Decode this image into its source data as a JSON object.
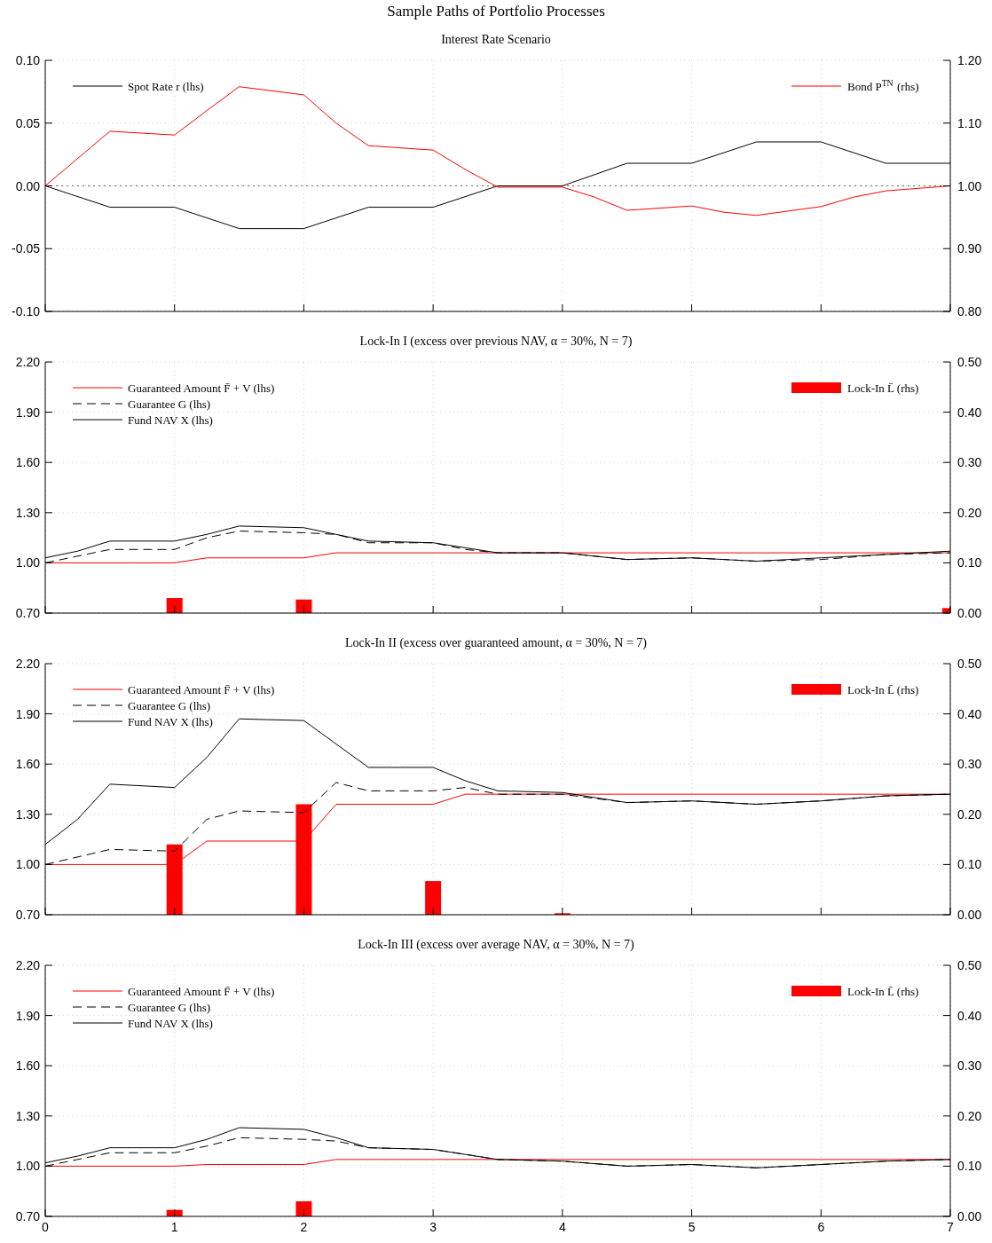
{
  "chart_data": [
    {
      "type": "line",
      "title": "Sample Paths of Portfolio Processes",
      "subtitle": "Interest Rate Scenario",
      "xlim": [
        0,
        7
      ],
      "xticks": [
        0,
        1,
        2,
        3,
        4,
        5,
        6,
        7
      ],
      "tick_labels": "y",
      "grid": true,
      "legend": "top",
      "ylim": [
        -0.1,
        0.1
      ],
      "yticks": [
        {
          "value": -0.1,
          "label": "-0.10"
        },
        {
          "value": -0.05,
          "label": "-0.05"
        },
        {
          "value": 0,
          "label": "0.00"
        },
        {
          "value": 0.05,
          "label": "0.05"
        },
        {
          "value": 0.1,
          "label": "0.10"
        }
      ],
      "y2lim": [
        0.8,
        1.2
      ],
      "y2ticks": [
        {
          "value": 0.8,
          "label": "0.80"
        },
        {
          "value": 0.9,
          "label": "0.90"
        },
        {
          "value": 1,
          "label": "1.00"
        },
        {
          "value": 1.1,
          "label": "1.10"
        },
        {
          "value": 1.2,
          "label": "1.20"
        }
      ],
      "ref_lines": [
        {
          "axis": "y",
          "value": 0,
          "color": "#666666",
          "line_style": "dotted"
        }
      ],
      "series": [
        {
          "name": "Spot Rate r (lhs)",
          "color": "#000000",
          "x": [
            0,
            0.5,
            1,
            1.5,
            2,
            2.5,
            3,
            3.5,
            4,
            4.5,
            5,
            5.5,
            6,
            6.5,
            7
          ],
          "values": [
            0,
            -0.017,
            -0.017,
            -0.034,
            -0.034,
            -0.017,
            -0.017,
            0,
            0,
            0.018,
            0.018,
            0.035,
            0.035,
            0.018,
            0.018
          ]
        },
        {
          "name": "Bond P$^{TN}$ (rhs)",
          "axis": "y2",
          "color": "#ff0000",
          "x": [
            0,
            0.5,
            1,
            1.25,
            1.5,
            2,
            2.25,
            2.5,
            3,
            3.25,
            3.5,
            4,
            4.25,
            4.5,
            5,
            5.25,
            5.5,
            6,
            6.25,
            6.5,
            7
          ],
          "values": [
            1.0,
            1.087,
            1.081,
            1.12,
            1.158,
            1.145,
            1.1,
            1.064,
            1.057,
            1.026,
            0.998,
            0.998,
            0.982,
            0.961,
            0.968,
            0.958,
            0.953,
            0.967,
            0.982,
            0.992,
            1.0
          ]
        }
      ]
    },
    {
      "type": "line",
      "subtitle": "Lock-In I (excess over previous NAV, α = 30%, N = 7)",
      "xlim": [
        0,
        7
      ],
      "xticks": [
        0,
        1,
        2,
        3,
        4,
        5,
        6,
        7
      ],
      "tick_labels": "y",
      "grid": true,
      "legend": "top",
      "ylim": [
        0.7,
        2.2
      ],
      "yticks": [
        {
          "value": 0.7,
          "label": "0.70"
        },
        {
          "value": 1,
          "label": "1.00"
        },
        {
          "value": 1.3,
          "label": "1.30"
        },
        {
          "value": 1.6,
          "label": "1.60"
        },
        {
          "value": 1.9,
          "label": "1.90"
        },
        {
          "value": 2.2,
          "label": "2.20"
        }
      ],
      "y2lim": [
        0,
        0.5
      ],
      "y2ticks": [
        {
          "value": 0,
          "label": "0.00"
        },
        {
          "value": 0.1,
          "label": "0.10"
        },
        {
          "value": 0.2,
          "label": "0.20"
        },
        {
          "value": 0.3,
          "label": "0.30"
        },
        {
          "value": 0.4,
          "label": "0.40"
        },
        {
          "value": 0.5,
          "label": "0.50"
        }
      ],
      "series": [
        {
          "name": "Guaranteed Amount F̄ + V (lhs)",
          "color": "#ff0000",
          "x": [
            0,
            1,
            1.25,
            2,
            2.25,
            7
          ],
          "values": [
            1.0,
            1.0,
            1.03,
            1.03,
            1.06,
            1.06
          ]
        },
        {
          "name": "Guarantee G (lhs)",
          "line_style": "dashed",
          "color": "#000000",
          "x": [
            0,
            0.5,
            1,
            1.25,
            1.5,
            2,
            2.25,
            2.5,
            3,
            3.25,
            3.5,
            4,
            4.25,
            4.5,
            5,
            5.5,
            6,
            6.5,
            7
          ],
          "values": [
            1.0,
            1.08,
            1.08,
            1.15,
            1.19,
            1.18,
            1.17,
            1.12,
            1.12,
            1.08,
            1.06,
            1.06,
            1.04,
            1.02,
            1.03,
            1.01,
            1.02,
            1.05,
            1.06
          ]
        },
        {
          "name": "Fund NAV X (lhs)",
          "color": "#000000",
          "x": [
            0,
            0.25,
            0.5,
            1,
            1.25,
            1.5,
            2,
            2.25,
            2.5,
            3,
            3.25,
            3.5,
            4,
            4.25,
            4.5,
            5,
            5.5,
            6,
            6.5,
            7
          ],
          "values": [
            1.03,
            1.07,
            1.13,
            1.13,
            1.17,
            1.22,
            1.21,
            1.17,
            1.13,
            1.12,
            1.09,
            1.06,
            1.06,
            1.04,
            1.02,
            1.03,
            1.01,
            1.03,
            1.05,
            1.07
          ]
        },
        {
          "name": "Lock-In L̄ (rhs)",
          "type": "bar",
          "axis": "y2",
          "color": "#ff0000",
          "x": [
            1,
            2,
            3,
            4,
            5,
            6,
            7
          ],
          "values": [
            0.03,
            0.027,
            0,
            0,
            0,
            0,
            0.01
          ]
        }
      ]
    },
    {
      "type": "line",
      "subtitle": "Lock-In II (excess over guaranteed amount, α = 30%, N = 7)",
      "xlim": [
        0,
        7
      ],
      "xticks": [
        0,
        1,
        2,
        3,
        4,
        5,
        6,
        7
      ],
      "tick_labels": "y",
      "grid": true,
      "legend": "top",
      "ylim": [
        0.7,
        2.2
      ],
      "yticks": [
        {
          "value": 0.7,
          "label": "0.70"
        },
        {
          "value": 1,
          "label": "1.00"
        },
        {
          "value": 1.3,
          "label": "1.30"
        },
        {
          "value": 1.6,
          "label": "1.60"
        },
        {
          "value": 1.9,
          "label": "1.90"
        },
        {
          "value": 2.2,
          "label": "2.20"
        }
      ],
      "y2lim": [
        0,
        0.5
      ],
      "y2ticks": [
        {
          "value": 0,
          "label": "0.00"
        },
        {
          "value": 0.1,
          "label": "0.10"
        },
        {
          "value": 0.2,
          "label": "0.20"
        },
        {
          "value": 0.3,
          "label": "0.30"
        },
        {
          "value": 0.4,
          "label": "0.40"
        },
        {
          "value": 0.5,
          "label": "0.50"
        }
      ],
      "series": [
        {
          "name": "Guaranteed Amount F̄ + V (lhs)",
          "color": "#ff0000",
          "x": [
            0,
            1,
            1.25,
            2,
            2.25,
            3,
            3.25,
            7
          ],
          "values": [
            1.0,
            1.0,
            1.14,
            1.14,
            1.36,
            1.36,
            1.42,
            1.42
          ]
        },
        {
          "name": "Guarantee G (lhs)",
          "line_style": "dashed",
          "color": "#000000",
          "x": [
            0,
            0.5,
            1,
            1.25,
            1.5,
            2,
            2.25,
            2.5,
            3,
            3.25,
            3.5,
            4,
            4.5,
            5,
            5.5,
            6,
            6.5,
            7
          ],
          "values": [
            1.0,
            1.09,
            1.08,
            1.27,
            1.32,
            1.31,
            1.49,
            1.44,
            1.44,
            1.46,
            1.42,
            1.42,
            1.37,
            1.38,
            1.36,
            1.38,
            1.41,
            1.42
          ]
        },
        {
          "name": "Fund NAV X (lhs)",
          "color": "#000000",
          "x": [
            0,
            0.25,
            0.5,
            1,
            1.25,
            1.5,
            2,
            2.25,
            2.5,
            3,
            3.25,
            3.5,
            4,
            4.5,
            5,
            5.5,
            6,
            6.5,
            7
          ],
          "values": [
            1.12,
            1.27,
            1.48,
            1.46,
            1.64,
            1.87,
            1.86,
            1.72,
            1.58,
            1.58,
            1.5,
            1.44,
            1.43,
            1.37,
            1.38,
            1.36,
            1.38,
            1.41,
            1.42
          ]
        },
        {
          "name": "Lock-In L̄ (rhs)",
          "type": "bar",
          "axis": "y2",
          "color": "#ff0000",
          "x": [
            1,
            2,
            3,
            4,
            5,
            6,
            7
          ],
          "values": [
            0.14,
            0.22,
            0.067,
            0.003,
            0,
            0,
            0
          ]
        }
      ]
    },
    {
      "type": "line",
      "subtitle": "Lock-In III (excess over average NAV, α = 30%, N = 7)",
      "xlim": [
        0,
        7
      ],
      "xticks": [
        0,
        1,
        2,
        3,
        4,
        5,
        6,
        7
      ],
      "grid": true,
      "legend": "top",
      "ylim": [
        0.7,
        2.2
      ],
      "yticks": [
        {
          "value": 0.7,
          "label": "0.70"
        },
        {
          "value": 1,
          "label": "1.00"
        },
        {
          "value": 1.3,
          "label": "1.30"
        },
        {
          "value": 1.6,
          "label": "1.60"
        },
        {
          "value": 1.9,
          "label": "1.90"
        },
        {
          "value": 2.2,
          "label": "2.20"
        }
      ],
      "y2lim": [
        0,
        0.5
      ],
      "y2ticks": [
        {
          "value": 0,
          "label": "0.00"
        },
        {
          "value": 0.1,
          "label": "0.10"
        },
        {
          "value": 0.2,
          "label": "0.20"
        },
        {
          "value": 0.3,
          "label": "0.30"
        },
        {
          "value": 0.4,
          "label": "0.40"
        },
        {
          "value": 0.5,
          "label": "0.50"
        }
      ],
      "series": [
        {
          "name": "Guaranteed Amount F̄ + V (lhs)",
          "color": "#ff0000",
          "x": [
            0,
            1,
            1.25,
            2,
            2.25,
            7
          ],
          "values": [
            1.0,
            1.0,
            1.01,
            1.01,
            1.04,
            1.04
          ]
        },
        {
          "name": "Guarantee G (lhs)",
          "line_style": "dashed",
          "color": "#000000",
          "x": [
            0,
            0.5,
            1,
            1.25,
            1.5,
            2,
            2.25,
            2.5,
            3,
            3.25,
            3.5,
            4,
            4.5,
            5,
            5.5,
            6,
            6.5,
            7
          ],
          "values": [
            1.0,
            1.08,
            1.08,
            1.12,
            1.17,
            1.16,
            1.15,
            1.11,
            1.1,
            1.07,
            1.04,
            1.03,
            1.0,
            1.01,
            0.99,
            1.01,
            1.03,
            1.04
          ]
        },
        {
          "name": "Fund NAV X (lhs)",
          "color": "#000000",
          "x": [
            0,
            0.25,
            0.5,
            1,
            1.25,
            1.5,
            2,
            2.25,
            2.5,
            3,
            3.25,
            3.5,
            4,
            4.5,
            5,
            5.5,
            6,
            6.5,
            7
          ],
          "values": [
            1.02,
            1.06,
            1.11,
            1.11,
            1.16,
            1.23,
            1.22,
            1.17,
            1.11,
            1.1,
            1.07,
            1.04,
            1.03,
            1.0,
            1.01,
            0.99,
            1.01,
            1.03,
            1.04
          ]
        },
        {
          "name": "Lock-In L̄ (rhs)",
          "type": "bar",
          "axis": "y2",
          "color": "#ff0000",
          "x": [
            1,
            2,
            3,
            4,
            5,
            6,
            7
          ],
          "values": [
            0.013,
            0.03,
            0,
            0,
            0,
            0,
            0
          ]
        }
      ]
    }
  ]
}
